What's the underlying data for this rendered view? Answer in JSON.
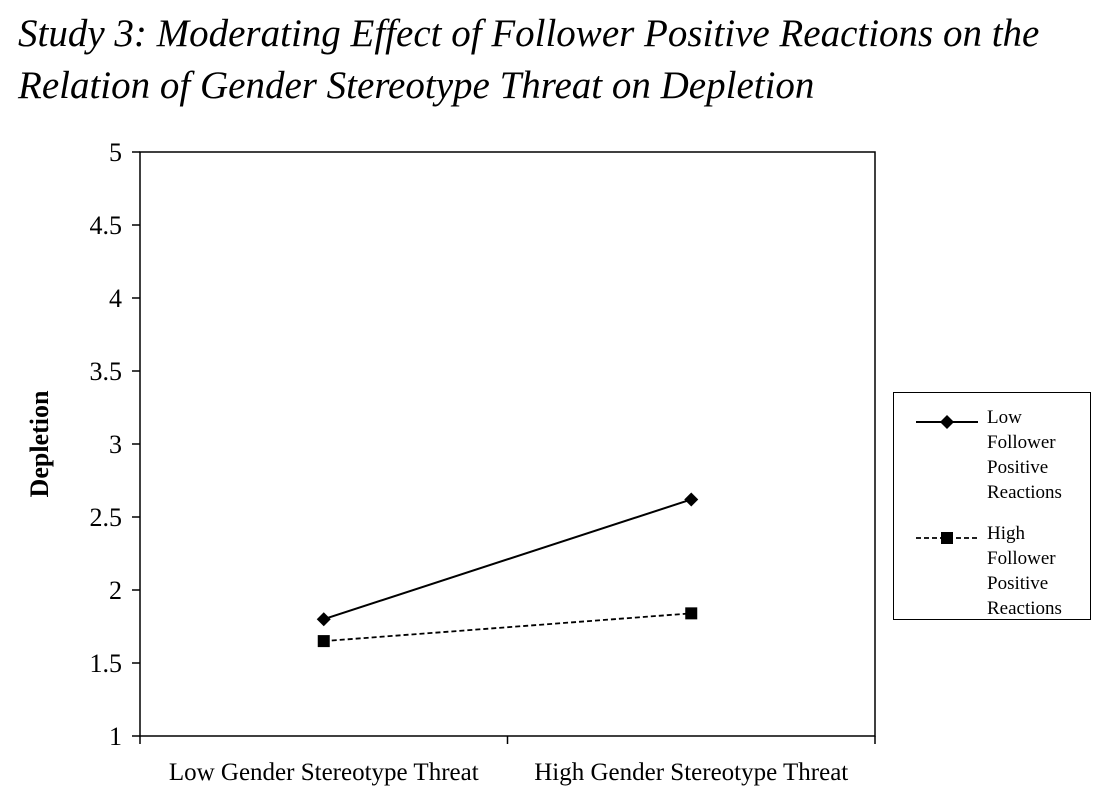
{
  "title": {
    "line1": "Study 3: Moderating Effect of Follower Positive Reactions on the",
    "line2": "Relation of Gender Stereotype Threat on Depletion"
  },
  "chart_data": {
    "type": "line",
    "categories": [
      "Low Gender Stereotype Threat",
      "High Gender Stereotype Threat"
    ],
    "series": [
      {
        "name": "Low Follower Positive Reactions",
        "values": [
          1.8,
          2.62
        ],
        "marker": "diamond",
        "line": "solid"
      },
      {
        "name": "High Follower Positive Reactions",
        "values": [
          1.65,
          1.84
        ],
        "marker": "square",
        "line": "dashed"
      }
    ],
    "title": "Study 3: Moderating Effect of Follower Positive Reactions on the Relation of Gender Stereotype Threat on Depletion",
    "xlabel": "",
    "ylabel": "Depletion",
    "ylim": [
      1,
      5
    ],
    "yticks": [
      "1",
      "1.5",
      "2",
      "2.5",
      "3",
      "3.5",
      "4",
      "4.5",
      "5"
    ],
    "grid": false,
    "legend_position": "right"
  },
  "legend": {
    "items": [
      {
        "lines": [
          "Low",
          "Follower",
          "Positive",
          "Reactions"
        ]
      },
      {
        "lines": [
          "High",
          "Follower",
          "Positive",
          "Reactions"
        ]
      }
    ]
  },
  "colors": {
    "ink": "#000000",
    "background": "#ffffff"
  }
}
